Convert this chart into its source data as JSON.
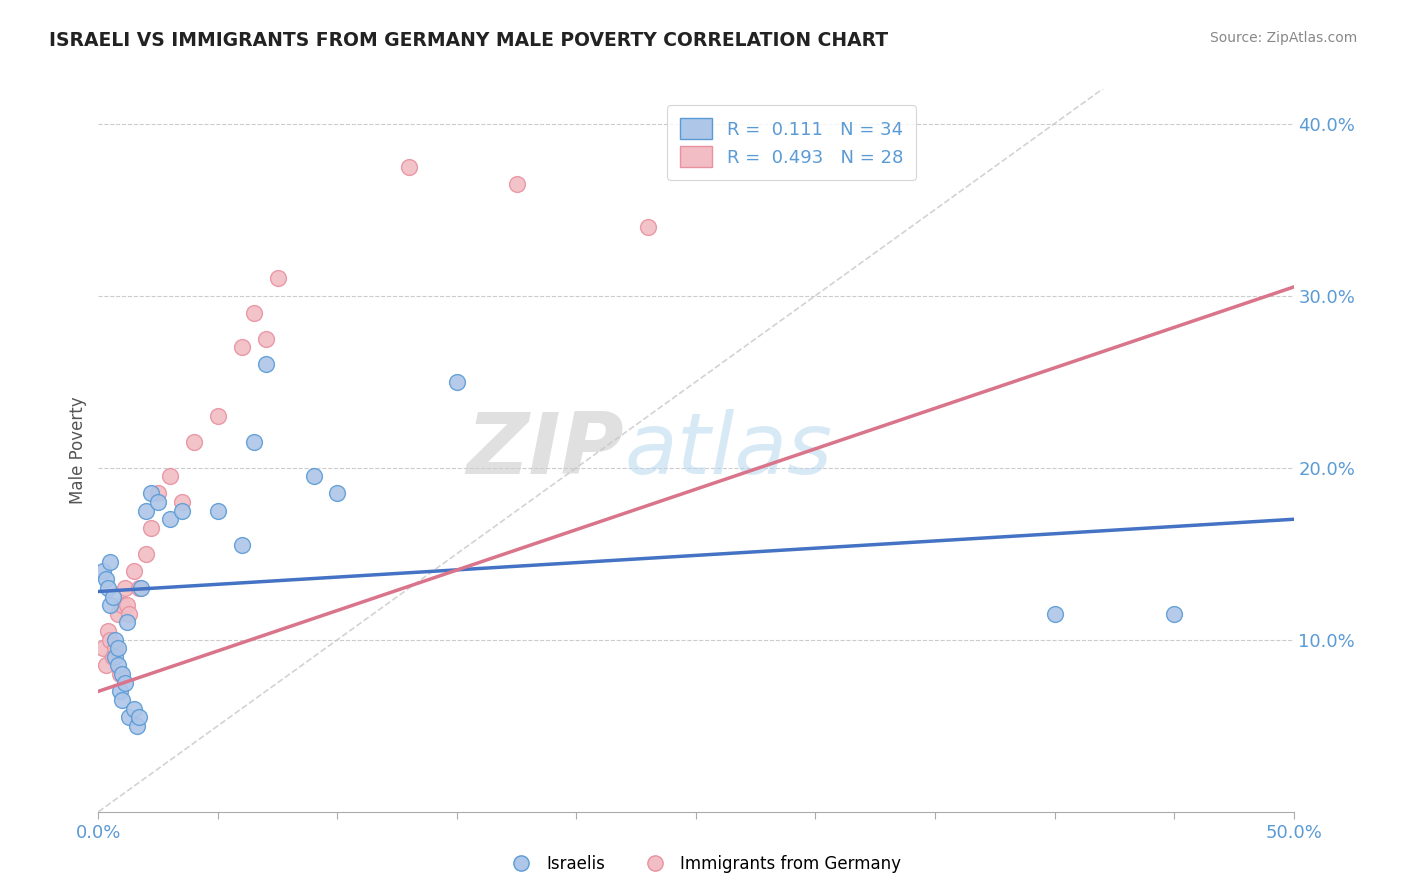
{
  "title": "ISRAELI VS IMMIGRANTS FROM GERMANY MALE POVERTY CORRELATION CHART",
  "source": "Source: ZipAtlas.com",
  "ylabel": "Male Poverty",
  "xlim": [
    0.0,
    0.5
  ],
  "ylim": [
    0.0,
    0.42
  ],
  "xticks": [
    0.0,
    0.05,
    0.1,
    0.15,
    0.2,
    0.25,
    0.3,
    0.35,
    0.4,
    0.45,
    0.5
  ],
  "xtick_labels": [
    "0.0%",
    "",
    "",
    "",
    "",
    "",
    "",
    "",
    "",
    "",
    "50.0%"
  ],
  "xtick_major": [
    0.0,
    0.5
  ],
  "xtick_major_labels": [
    "0.0%",
    "50.0%"
  ],
  "yticks": [
    0.1,
    0.2,
    0.3,
    0.4
  ],
  "ytick_labels": [
    "10.0%",
    "20.0%",
    "30.0%",
    "40.0%"
  ],
  "legend_labels": [
    "Israelis",
    "Immigrants from Germany"
  ],
  "watermark_zip": "ZIP",
  "watermark_atlas": "atlas",
  "blue_color": "#5b9bd5",
  "pink_color": "#e8919f",
  "blue_fill": "#aec6e8",
  "pink_fill": "#f2bdc5",
  "diagonal_color": "#c8c8c8",
  "blue_line_color": "#4472c4",
  "pink_line_color": "#d9748a",
  "israelis_x": [
    0.002,
    0.003,
    0.004,
    0.005,
    0.005,
    0.006,
    0.007,
    0.007,
    0.008,
    0.008,
    0.009,
    0.01,
    0.01,
    0.011,
    0.012,
    0.013,
    0.015,
    0.016,
    0.017,
    0.018,
    0.02,
    0.022,
    0.025,
    0.03,
    0.035,
    0.05,
    0.06,
    0.065,
    0.07,
    0.09,
    0.1,
    0.15,
    0.4,
    0.45
  ],
  "israelis_y": [
    0.14,
    0.135,
    0.13,
    0.145,
    0.12,
    0.125,
    0.09,
    0.1,
    0.085,
    0.095,
    0.07,
    0.065,
    0.08,
    0.075,
    0.11,
    0.055,
    0.06,
    0.05,
    0.055,
    0.13,
    0.175,
    0.185,
    0.18,
    0.17,
    0.175,
    0.175,
    0.155,
    0.215,
    0.26,
    0.195,
    0.185,
    0.25,
    0.115,
    0.115
  ],
  "germany_x": [
    0.002,
    0.003,
    0.004,
    0.005,
    0.006,
    0.007,
    0.008,
    0.009,
    0.01,
    0.011,
    0.012,
    0.013,
    0.015,
    0.017,
    0.02,
    0.022,
    0.025,
    0.03,
    0.035,
    0.04,
    0.05,
    0.06,
    0.065,
    0.07,
    0.075,
    0.13,
    0.175,
    0.23
  ],
  "germany_y": [
    0.095,
    0.085,
    0.105,
    0.1,
    0.09,
    0.095,
    0.115,
    0.08,
    0.12,
    0.13,
    0.12,
    0.115,
    0.14,
    0.13,
    0.15,
    0.165,
    0.185,
    0.195,
    0.18,
    0.215,
    0.23,
    0.27,
    0.29,
    0.275,
    0.31,
    0.375,
    0.365,
    0.34
  ],
  "blue_trend_x0": 0.0,
  "blue_trend_y0": 0.128,
  "blue_trend_x1": 0.5,
  "blue_trend_y1": 0.17,
  "pink_trend_x0": 0.0,
  "pink_trend_y0": 0.07,
  "pink_trend_x1": 0.5,
  "pink_trend_y1": 0.305
}
